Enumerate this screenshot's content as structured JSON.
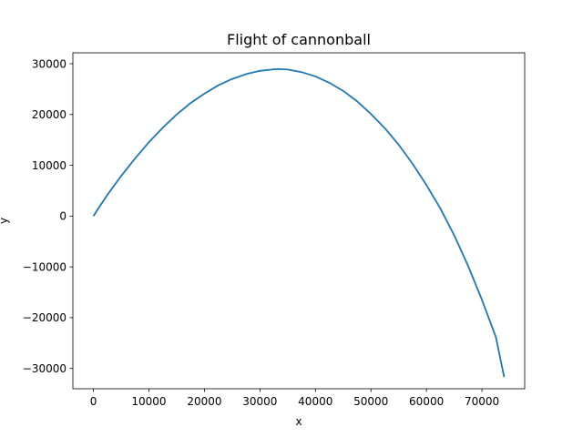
{
  "chart_data": {
    "type": "line",
    "title": "Flight of cannonball",
    "xlabel": "x",
    "ylabel": "y",
    "xlim": [
      -3700,
      77700
    ],
    "ylim": [
      -34000,
      32150
    ],
    "xticks": [
      0,
      10000,
      20000,
      30000,
      40000,
      50000,
      60000,
      70000
    ],
    "yticks": [
      -30000,
      -20000,
      -10000,
      0,
      10000,
      20000,
      30000
    ],
    "grid": false,
    "series": [
      {
        "color": "#1f77b4",
        "x": [
          0,
          1000,
          2500,
          5000,
          7500,
          10000,
          12500,
          15000,
          17500,
          20000,
          22500,
          25000,
          27500,
          30000,
          32500,
          33500,
          35000,
          37500,
          40000,
          42500,
          45000,
          47500,
          50000,
          52500,
          55000,
          57500,
          60000,
          62500,
          65000,
          67500,
          70000,
          72500,
          74000
        ],
        "y": [
          0,
          1700,
          4150,
          7900,
          11350,
          14550,
          17400,
          20000,
          22250,
          24100,
          25750,
          27000,
          27950,
          28600,
          28900,
          28950,
          28850,
          28350,
          27500,
          26250,
          24650,
          22600,
          20100,
          17300,
          14050,
          10300,
          6100,
          1500,
          -3800,
          -9800,
          -16500,
          -23800,
          -31700
        ]
      }
    ]
  }
}
